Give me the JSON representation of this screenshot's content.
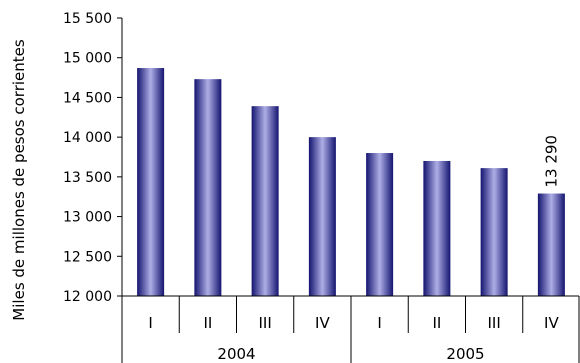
{
  "chart_data": {
    "type": "bar",
    "ylabel": "Miles de millones de pesos corrientes",
    "ylim": [
      12000,
      15500
    ],
    "yticks": [
      12000,
      12500,
      13000,
      13500,
      14000,
      14500,
      15000,
      15500
    ],
    "ytick_labels": [
      "12 000",
      "12 500",
      "13 000",
      "13 500",
      "14 000",
      "14 500",
      "15 000",
      "15 500"
    ],
    "categories": [
      "I",
      "II",
      "III",
      "IV",
      "I",
      "II",
      "III",
      "IV"
    ],
    "groups": [
      {
        "label": "2004",
        "span": [
          0,
          3
        ]
      },
      {
        "label": "2005",
        "span": [
          4,
          7
        ]
      }
    ],
    "values": [
      14870,
      14730,
      14390,
      14000,
      13800,
      13700,
      13610,
      13290
    ],
    "data_labels": [
      {
        "index": 7,
        "text": "13 290"
      }
    ],
    "bar_color": "#1a1a80",
    "bar_highlight_color": "#b0b0e8"
  }
}
